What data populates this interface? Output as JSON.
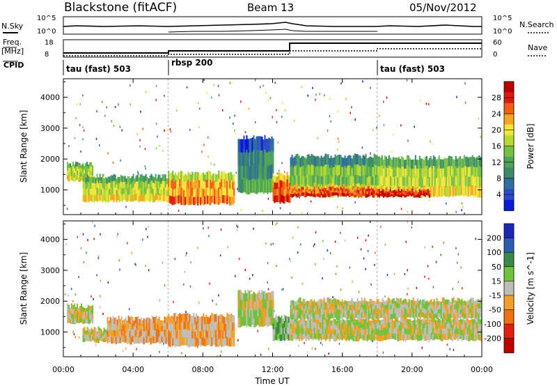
{
  "header": {
    "station": "Blackstone (fitACF)",
    "beam": "Beam 13",
    "date": "05/Nov/2012"
  },
  "panels": {
    "noise_left_label": "N.Sky",
    "noise_left_ticks": [
      "10^5",
      "10^0"
    ],
    "noise_right_ticks": [
      "10^5",
      "10^0"
    ],
    "noise_right_label": "N.Search",
    "freq_label": "Freq.",
    "freq_unit": "[MHz]",
    "freq_ticks": [
      "18",
      "8"
    ],
    "nave_ticks": [
      "60",
      "0"
    ],
    "nave_label": "Nave",
    "cpid_label": "CPID",
    "cpid_segments": [
      {
        "label": "tau (fast) 503",
        "start_hour": 0,
        "end_hour": 6
      },
      {
        "label": "rbsp 200",
        "start_hour": 6,
        "end_hour": 18
      },
      {
        "label": "tau (fast) 503",
        "start_hour": 18,
        "end_hour": 24
      }
    ]
  },
  "chart_data": [
    {
      "type": "heatmap",
      "title": "",
      "variable": "Power",
      "ylabel": "Slant Range [km]",
      "y_ticks": [
        1000,
        2000,
        3000,
        4000
      ],
      "ylim": [
        200,
        4600
      ],
      "xlim": [
        0,
        24
      ],
      "colorbar_label": "Power [dB]",
      "colorbar_ticks": [
        "28",
        "24",
        "20",
        "16",
        "12",
        "8",
        "4"
      ],
      "colors": [
        "#0a1adc",
        "#2c4cc4",
        "#2f6fa0",
        "#3c8a6a",
        "#4fa35a",
        "#76c043",
        "#b7d832",
        "#f3e43a",
        "#f7a520",
        "#ee5f14",
        "#dd1a10",
        "#bb0000"
      ],
      "bands": [
        {
          "start_hour": 0.2,
          "end_hour": 1.7,
          "low_km": 1300,
          "high_km": 1850,
          "level": 6
        },
        {
          "start_hour": 1.1,
          "end_hour": 6.0,
          "low_km": 650,
          "high_km": 1450,
          "level": 6
        },
        {
          "start_hour": 6.0,
          "end_hour": 9.8,
          "low_km": 550,
          "high_km": 1550,
          "level": 8
        },
        {
          "start_hour": 10.0,
          "end_hour": 12.0,
          "low_km": 900,
          "high_km": 2700,
          "level": 3
        },
        {
          "start_hour": 12.0,
          "end_hour": 13.0,
          "low_km": 600,
          "high_km": 1500,
          "level": 9
        },
        {
          "start_hour": 13.0,
          "end_hour": 18.0,
          "low_km": 800,
          "high_km": 2100,
          "level": 5
        },
        {
          "start_hour": 13.0,
          "end_hour": 18.0,
          "low_km": 800,
          "high_km": 1150,
          "level": 9
        },
        {
          "start_hour": 18.0,
          "end_hour": 24.0,
          "low_km": 800,
          "high_km": 2050,
          "level": 6
        },
        {
          "start_hour": 18.0,
          "end_hour": 21.0,
          "low_km": 800,
          "high_km": 1050,
          "level": 10
        }
      ]
    },
    {
      "type": "heatmap",
      "title": "",
      "variable": "Velocity",
      "ylabel": "Slant Range [km]",
      "y_ticks": [
        1000,
        2000,
        3000,
        4000
      ],
      "ylim": [
        200,
        4600
      ],
      "xlim": [
        0,
        24
      ],
      "xlabel": "Time UT",
      "x_ticks": [
        "00:00",
        "04:00",
        "08:00",
        "12:00",
        "16:00",
        "20:00",
        "00:00"
      ],
      "colorbar_label": "Velocity [m s^-1]",
      "colorbar_ticks": [
        "200",
        "100",
        "50",
        "15",
        "-15",
        "-50",
        "-100",
        "-200"
      ],
      "colors": [
        "#1a2ab4",
        "#2c5db0",
        "#3c8a48",
        "#6fc23a",
        "#bdbdb5",
        "#f0a028",
        "#f07010",
        "#e02010",
        "#c00000"
      ],
      "bands": [
        {
          "start_hour": 0.2,
          "end_hour": 1.7,
          "low_km": 1300,
          "high_km": 1850,
          "level": 4
        },
        {
          "start_hour": 1.1,
          "end_hour": 2.5,
          "low_km": 700,
          "high_km": 1100,
          "level": 4
        },
        {
          "start_hour": 2.5,
          "end_hour": 6.0,
          "low_km": 650,
          "high_km": 1450,
          "level": 5
        },
        {
          "start_hour": 6.0,
          "end_hour": 9.8,
          "low_km": 550,
          "high_km": 1550,
          "level": 5
        },
        {
          "start_hour": 10.0,
          "end_hour": 12.0,
          "low_km": 1200,
          "high_km": 2300,
          "level": 4
        },
        {
          "start_hour": 12.0,
          "end_hour": 13.0,
          "low_km": 750,
          "high_km": 1500,
          "level": 3
        },
        {
          "start_hour": 13.0,
          "end_hour": 24.0,
          "low_km": 750,
          "high_km": 1450,
          "level": 4
        },
        {
          "start_hour": 13.0,
          "end_hour": 24.0,
          "low_km": 1450,
          "high_km": 2050,
          "level": 4
        }
      ]
    }
  ]
}
